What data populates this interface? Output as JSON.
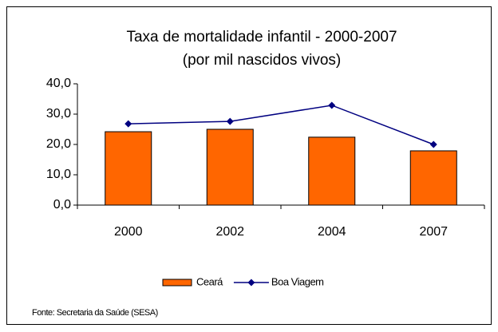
{
  "chart_data": {
    "type": "bar",
    "title": "Taxa de mortalidade infantil - 2000-2007",
    "subtitle": "(por mil nascidos vivos)",
    "categories": [
      "2000",
      "2002",
      "2004",
      "2007"
    ],
    "series": [
      {
        "name": "Ceará",
        "type": "bar",
        "color": "#ff6600",
        "values": [
          24.2,
          25.0,
          22.4,
          17.9
        ]
      },
      {
        "name": "Boa Viagem",
        "type": "line",
        "color": "#000080",
        "values": [
          26.8,
          27.6,
          32.9,
          20.0
        ]
      }
    ],
    "ylim": [
      0,
      40
    ],
    "yticks": [
      {
        "value": 0,
        "label": "0,0"
      },
      {
        "value": 10,
        "label": "10,0"
      },
      {
        "value": 20,
        "label": "20,0"
      },
      {
        "value": 30,
        "label": "30,0"
      },
      {
        "value": 40,
        "label": "40,0"
      }
    ],
    "grid": false,
    "legend": "bottom",
    "source": "Fonte: Secretaria da Saúde (SESA)"
  }
}
